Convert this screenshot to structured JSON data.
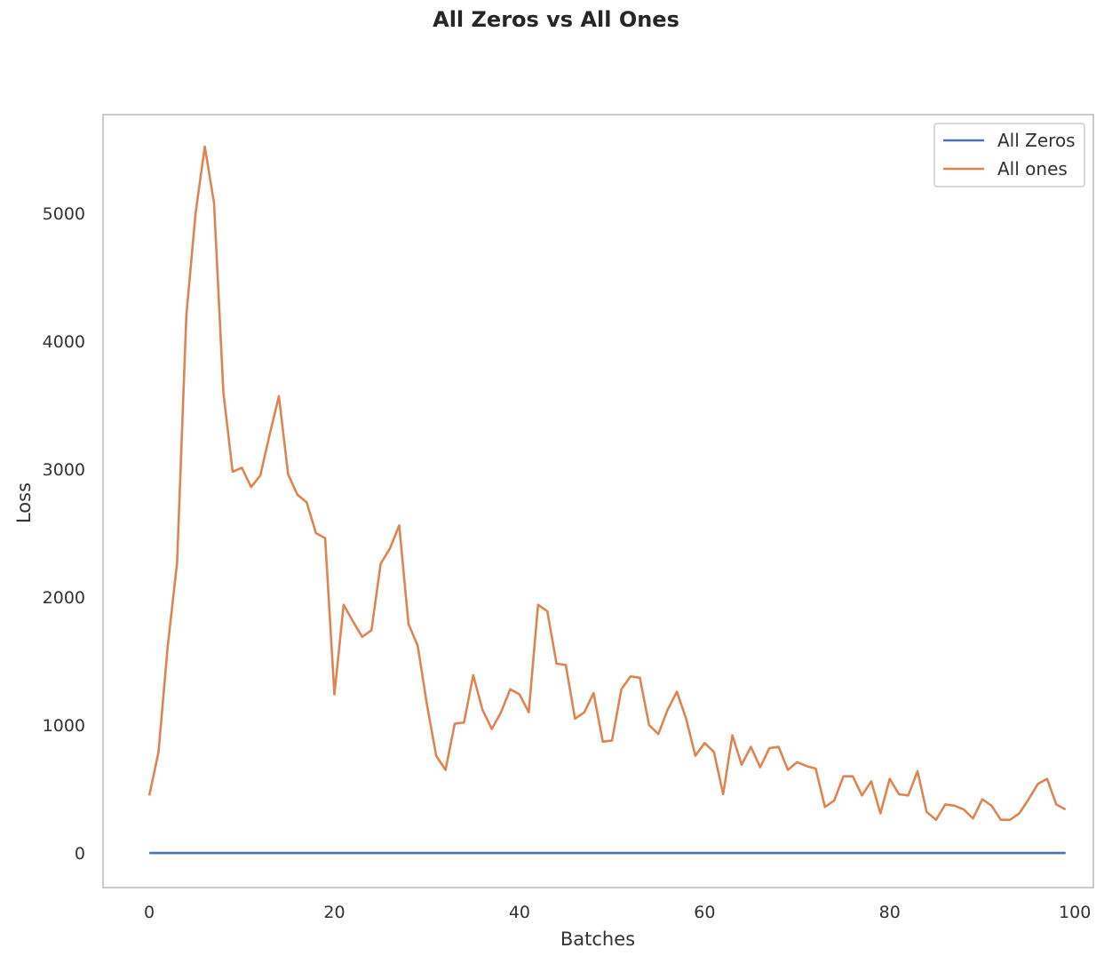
{
  "chart_data": {
    "type": "line",
    "title": "All Zeros vs All Ones",
    "xlabel": "Batches",
    "ylabel": "Loss",
    "xlim": [
      -5,
      102
    ],
    "ylim": [
      -270,
      5770
    ],
    "xticks": [
      0,
      20,
      40,
      60,
      80,
      100
    ],
    "yticks": [
      0,
      1000,
      2000,
      3000,
      4000,
      5000
    ],
    "grid": false,
    "legend_position": "upper right",
    "series": [
      {
        "name": "All Zeros",
        "color": "#4c72b0",
        "x": [
          0,
          99
        ],
        "y": [
          0,
          0
        ]
      },
      {
        "name": "All ones",
        "color": "#dd8452",
        "x": [
          0,
          1,
          2,
          3,
          4,
          5,
          6,
          7,
          8,
          9,
          10,
          11,
          12,
          13,
          14,
          15,
          16,
          17,
          18,
          19,
          20,
          21,
          22,
          23,
          24,
          25,
          26,
          27,
          28,
          29,
          30,
          31,
          32,
          33,
          34,
          35,
          36,
          37,
          38,
          39,
          40,
          41,
          42,
          43,
          44,
          45,
          46,
          47,
          48,
          49,
          50,
          51,
          52,
          53,
          54,
          55,
          56,
          57,
          58,
          59,
          60,
          61,
          62,
          63,
          64,
          65,
          66,
          67,
          68,
          69,
          70,
          71,
          72,
          73,
          74,
          75,
          76,
          77,
          78,
          79,
          80,
          81,
          82,
          83,
          84,
          85,
          86,
          87,
          88,
          89,
          90,
          91,
          92,
          93,
          94,
          95,
          96,
          97,
          98,
          99
        ],
        "y": [
          450,
          790,
          1620,
          2270,
          4200,
          5000,
          5520,
          5080,
          3600,
          2980,
          3010,
          2860,
          2950,
          3270,
          3570,
          2960,
          2800,
          2740,
          2500,
          2460,
          1240,
          1940,
          1810,
          1690,
          1740,
          2260,
          2380,
          2560,
          1790,
          1620,
          1160,
          760,
          650,
          1010,
          1020,
          1390,
          1120,
          970,
          1100,
          1280,
          1240,
          1100,
          1940,
          1890,
          1480,
          1470,
          1050,
          1100,
          1250,
          870,
          880,
          1280,
          1380,
          1370,
          1000,
          930,
          1120,
          1260,
          1050,
          760,
          860,
          790,
          460,
          920,
          690,
          830,
          670,
          820,
          830,
          650,
          710,
          680,
          660,
          360,
          410,
          600,
          600,
          450,
          560,
          310,
          580,
          460,
          450,
          640,
          320,
          260,
          380,
          370,
          340,
          270,
          420,
          370,
          260,
          260,
          310,
          420,
          540,
          580,
          380,
          340
        ]
      }
    ]
  }
}
